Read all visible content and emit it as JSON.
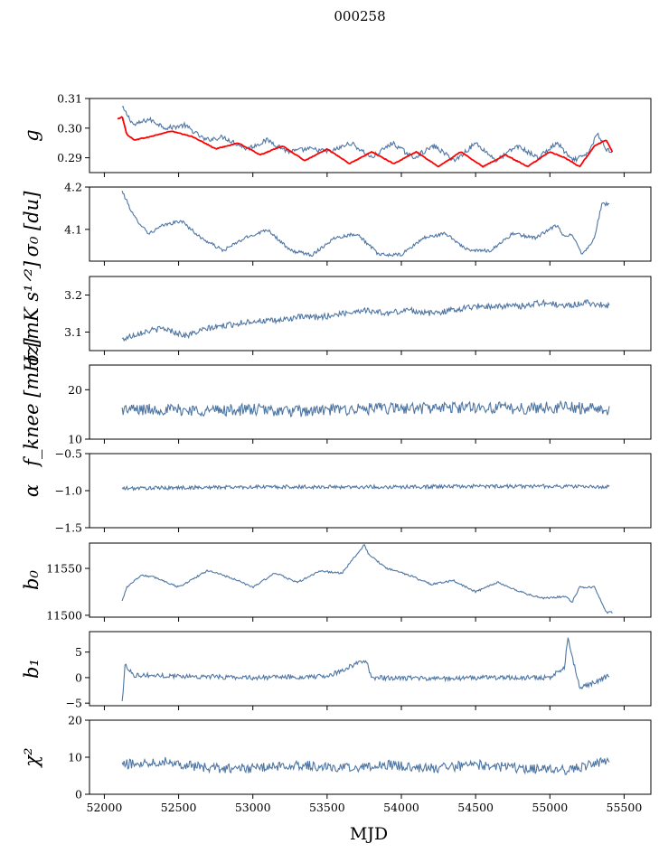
{
  "figure": {
    "title": "000258",
    "xlabel": "MJD",
    "colors": {
      "series": "#4f76a3",
      "model": "#ff0000",
      "axis": "#000000"
    }
  },
  "chart_data": [
    {
      "type": "line",
      "name": "g",
      "ylabel": "g",
      "xlim": [
        51900,
        55680
      ],
      "ylim": [
        0.285,
        0.31
      ],
      "xticks": [
        52000,
        52500,
        53000,
        53500,
        54000,
        54500,
        55000,
        55500
      ],
      "yticks": [
        0.29,
        0.3,
        0.31
      ],
      "ytick_labels": [
        "0.29",
        "0.30",
        "0.31"
      ],
      "series": [
        {
          "name": "measured",
          "color": "#4f76a3",
          "x": [
            52120,
            52200,
            52300,
            52420,
            52540,
            52680,
            52800,
            52960,
            53100,
            53240,
            53380,
            53520,
            53660,
            53800,
            53940,
            54080,
            54220,
            54360,
            54500,
            54640,
            54780,
            54920,
            55050,
            55150,
            55250,
            55320,
            55380,
            55420
          ],
          "y": [
            0.307,
            0.301,
            0.303,
            0.3,
            0.301,
            0.296,
            0.297,
            0.293,
            0.296,
            0.292,
            0.293,
            0.292,
            0.295,
            0.29,
            0.295,
            0.29,
            0.294,
            0.289,
            0.295,
            0.289,
            0.294,
            0.29,
            0.295,
            0.289,
            0.291,
            0.298,
            0.293,
            0.292
          ]
        },
        {
          "name": "model",
          "color": "#ff0000",
          "x": [
            52090,
            52120,
            52150,
            52200,
            52300,
            52450,
            52600,
            52750,
            52900,
            53050,
            53200,
            53350,
            53500,
            53650,
            53800,
            53950,
            54100,
            54250,
            54400,
            54550,
            54700,
            54850,
            55000,
            55100,
            55200,
            55300,
            55380,
            55420
          ],
          "y": [
            0.303,
            0.304,
            0.298,
            0.296,
            0.297,
            0.299,
            0.297,
            0.293,
            0.295,
            0.291,
            0.294,
            0.289,
            0.293,
            0.288,
            0.292,
            0.288,
            0.292,
            0.287,
            0.292,
            0.287,
            0.291,
            0.287,
            0.292,
            0.29,
            0.287,
            0.294,
            0.296,
            0.292
          ]
        }
      ]
    },
    {
      "type": "line",
      "name": "sigma0",
      "ylabel": "σ₀ [du]",
      "xlim": [
        51900,
        55680
      ],
      "ylim": [
        4.025,
        4.2
      ],
      "xticks": [
        52000,
        52500,
        53000,
        53500,
        54000,
        54500,
        55000,
        55500
      ],
      "yticks": [
        4.1,
        4.2
      ],
      "ytick_labels": [
        "4.1",
        "4.2"
      ],
      "series": [
        {
          "name": "sigma0",
          "color": "#4f76a3",
          "x": [
            52120,
            52200,
            52300,
            52400,
            52520,
            52650,
            52800,
            52950,
            53100,
            53250,
            53400,
            53550,
            53700,
            53850,
            54000,
            54150,
            54300,
            54450,
            54600,
            54750,
            54900,
            55050,
            55100,
            55150,
            55220,
            55300,
            55350,
            55400
          ],
          "y": [
            4.19,
            4.13,
            4.09,
            4.11,
            4.12,
            4.08,
            4.05,
            4.08,
            4.1,
            4.05,
            4.04,
            4.08,
            4.09,
            4.04,
            4.04,
            4.08,
            4.09,
            4.05,
            4.05,
            4.09,
            4.08,
            4.11,
            4.08,
            4.09,
            4.04,
            4.08,
            4.16,
            4.16
          ]
        }
      ]
    },
    {
      "type": "line",
      "name": "sigma",
      "ylabel": "σ [mK s¹ᐟ²]",
      "xlim": [
        51900,
        55680
      ],
      "ylim": [
        3.05,
        3.25
      ],
      "xticks": [
        52000,
        52500,
        53000,
        53500,
        54000,
        54500,
        55000,
        55500
      ],
      "yticks": [
        3.1,
        3.2
      ],
      "ytick_labels": [
        "3.1",
        "3.2"
      ],
      "series": [
        {
          "name": "sigma",
          "color": "#4f76a3",
          "x": [
            52120,
            52250,
            52400,
            52550,
            52700,
            52850,
            53000,
            53150,
            53300,
            53450,
            53600,
            53750,
            53900,
            54050,
            54200,
            54350,
            54500,
            54650,
            54800,
            54950,
            55100,
            55250,
            55400
          ],
          "y": [
            3.08,
            3.1,
            3.11,
            3.09,
            3.11,
            3.12,
            3.13,
            3.13,
            3.14,
            3.14,
            3.15,
            3.16,
            3.15,
            3.16,
            3.15,
            3.16,
            3.17,
            3.17,
            3.17,
            3.18,
            3.17,
            3.18,
            3.17
          ]
        }
      ]
    },
    {
      "type": "line",
      "name": "fknee",
      "ylabel": "f_knee [mHz]",
      "xlim": [
        51900,
        55680
      ],
      "ylim": [
        10,
        25
      ],
      "xticks": [
        52000,
        52500,
        53000,
        53500,
        54000,
        54500,
        55000,
        55500
      ],
      "yticks": [
        10,
        20
      ],
      "ytick_labels": [
        "10",
        "20"
      ],
      "series": [
        {
          "name": "fknee",
          "color": "#4f76a3",
          "x": [
            52120,
            52400,
            52700,
            53000,
            53300,
            53600,
            53900,
            54200,
            54500,
            54800,
            55100,
            55400
          ],
          "y": [
            16,
            16,
            15.8,
            16,
            15.6,
            16,
            16.2,
            16.3,
            16.5,
            16.2,
            16.5,
            16
          ]
        }
      ]
    },
    {
      "type": "line",
      "name": "alpha",
      "ylabel": "α",
      "xlim": [
        51900,
        55680
      ],
      "ylim": [
        -1.5,
        -0.5
      ],
      "xticks": [
        52000,
        52500,
        53000,
        53500,
        54000,
        54500,
        55000,
        55500
      ],
      "yticks": [
        -1.5,
        -1.0,
        -0.5
      ],
      "ytick_labels": [
        "−1.5",
        "−1.0",
        "−0.5"
      ],
      "series": [
        {
          "name": "alpha",
          "color": "#4f76a3",
          "x": [
            52120,
            52500,
            53000,
            53500,
            54000,
            54500,
            55000,
            55400
          ],
          "y": [
            -0.97,
            -0.96,
            -0.95,
            -0.95,
            -0.95,
            -0.94,
            -0.94,
            -0.95
          ]
        }
      ]
    },
    {
      "type": "line",
      "name": "b0",
      "ylabel": "b₀",
      "xlim": [
        51900,
        55680
      ],
      "ylim": [
        11498,
        11577
      ],
      "xticks": [
        52000,
        52500,
        53000,
        53500,
        54000,
        54500,
        55000,
        55500
      ],
      "yticks": [
        11500,
        11550
      ],
      "ytick_labels": [
        "11500",
        "11550"
      ],
      "series": [
        {
          "name": "b0",
          "color": "#4f76a3",
          "x": [
            52120,
            52150,
            52250,
            52350,
            52500,
            52700,
            52850,
            53000,
            53150,
            53300,
            53450,
            53600,
            53750,
            53780,
            53900,
            54050,
            54200,
            54350,
            54500,
            54650,
            54800,
            54950,
            55100,
            55150,
            55200,
            55300,
            55380,
            55420
          ],
          "y": [
            11515,
            11530,
            11543,
            11540,
            11530,
            11548,
            11540,
            11530,
            11545,
            11535,
            11547,
            11545,
            11575,
            11565,
            11550,
            11543,
            11533,
            11537,
            11525,
            11535,
            11525,
            11518,
            11520,
            11514,
            11530,
            11530,
            11503,
            11503
          ]
        }
      ]
    },
    {
      "type": "line",
      "name": "b1",
      "ylabel": "b₁",
      "xlim": [
        51900,
        55680
      ],
      "ylim": [
        -5.5,
        9
      ],
      "xticks": [
        52000,
        52500,
        53000,
        53500,
        54000,
        54500,
        55000,
        55500
      ],
      "yticks": [
        -5,
        0,
        5
      ],
      "ytick_labels": [
        "−5",
        "0",
        "5"
      ],
      "series": [
        {
          "name": "b1",
          "color": "#4f76a3",
          "x": [
            52120,
            52140,
            52200,
            52500,
            53000,
            53500,
            53760,
            53800,
            54200,
            54600,
            55000,
            55100,
            55120,
            55200,
            55300,
            55400
          ],
          "y": [
            -4.8,
            2.5,
            0.5,
            0.3,
            0,
            0.2,
            3.5,
            0,
            -0.2,
            0,
            0,
            2,
            7.8,
            -2,
            -1,
            0.5
          ]
        }
      ]
    },
    {
      "type": "line",
      "name": "chi2",
      "ylabel": "χ²",
      "xlim": [
        51900,
        55680
      ],
      "ylim": [
        0,
        20
      ],
      "xticks": [
        52000,
        52500,
        53000,
        53500,
        54000,
        54500,
        55000,
        55500
      ],
      "xtick_labels": [
        "52000",
        "52500",
        "53000",
        "53500",
        "54000",
        "54500",
        "55000",
        "55500"
      ],
      "yticks": [
        0,
        10,
        20
      ],
      "ytick_labels": [
        "0",
        "10",
        "20"
      ],
      "series": [
        {
          "name": "chi2",
          "color": "#4f76a3",
          "x": [
            52120,
            52400,
            52700,
            53000,
            53300,
            53600,
            53900,
            54200,
            54500,
            54800,
            55100,
            55400
          ],
          "y": [
            8,
            9,
            7,
            7,
            8,
            7,
            8,
            7,
            8,
            7,
            6.5,
            9
          ]
        }
      ]
    }
  ]
}
